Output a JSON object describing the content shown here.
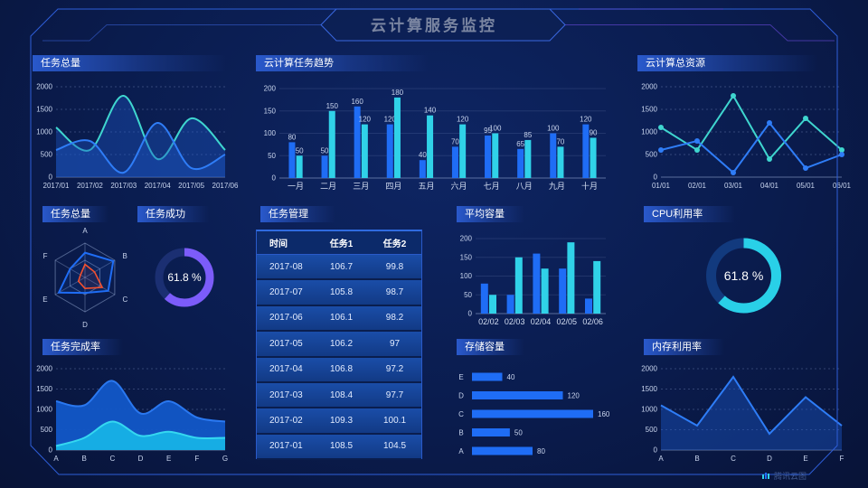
{
  "header": {
    "title": "云计算服务监控"
  },
  "watermark": {
    "label": "腾讯云图"
  },
  "colors": {
    "background": "#0a1c4e",
    "frame": "#2e5ed8",
    "frame_purple": "#6b4be0",
    "blue": "#1f6df5",
    "cyan": "#30d2e8",
    "teal": "#3fd6cf",
    "purple": "#7c5cfa",
    "red": "#f4502e"
  },
  "chart_data": [
    {
      "id": "task-total-area",
      "type": "area",
      "title": "任务总量",
      "smooth": true,
      "x": [
        "2017/01",
        "2017/02",
        "2017/03",
        "2017/04",
        "2017/05",
        "2017/06"
      ],
      "yticks": [
        0,
        500,
        1000,
        1500,
        2000
      ],
      "ylim": [
        0,
        2000
      ],
      "grid": "dashed",
      "series": [
        {
          "name": "series-teal",
          "color": "#3fd6cf",
          "fill": "rgba(27,84,196,0.40)",
          "values": [
            1100,
            600,
            1800,
            400,
            1300,
            600
          ]
        },
        {
          "name": "series-blue",
          "color": "#2f7df7",
          "fill": "rgba(27,84,196,0.40)",
          "values": [
            600,
            800,
            100,
            1200,
            200,
            500
          ]
        }
      ]
    },
    {
      "id": "cloud-task-trend",
      "type": "bar",
      "title": "云计算任务趋势",
      "labels": true,
      "categories": [
        "一月",
        "二月",
        "三月",
        "四月",
        "五月",
        "六月",
        "七月",
        "八月",
        "九月",
        "十月"
      ],
      "yticks": [
        0,
        50,
        100,
        150,
        200
      ],
      "ylim": [
        0,
        200
      ],
      "series": [
        {
          "name": "series-blue",
          "color": "#1f6df5",
          "values": [
            80,
            50,
            160,
            120,
            40,
            70,
            95,
            65,
            100,
            120
          ]
        },
        {
          "name": "series-cyan",
          "color": "#30d2e8",
          "values": [
            50,
            150,
            120,
            180,
            140,
            120,
            100,
            85,
            70,
            90
          ]
        }
      ]
    },
    {
      "id": "cloud-total-resources",
      "type": "line",
      "title": "云计算总资源",
      "markers": true,
      "smooth": false,
      "x": [
        "01/01",
        "02/01",
        "03/01",
        "04/01",
        "05/01",
        "06/01"
      ],
      "yticks": [
        0,
        500,
        1000,
        1500,
        2000
      ],
      "ylim": [
        0,
        2000
      ],
      "grid": "dashed",
      "series": [
        {
          "name": "series-teal",
          "color": "#3fd6cf",
          "values": [
            1100,
            600,
            1800,
            400,
            1300,
            600
          ]
        },
        {
          "name": "series-blue",
          "color": "#2f7df7",
          "values": [
            600,
            800,
            100,
            1200,
            200,
            500
          ]
        }
      ]
    },
    {
      "id": "task-total-radar",
      "type": "radar",
      "title": "任务总量",
      "axes": [
        "A",
        "B",
        "C",
        "D",
        "E",
        "F"
      ],
      "series": [
        {
          "name": "radar-blue",
          "color": "#1f6df5",
          "values": [
            0.72,
            0.95,
            0.78,
            0.45,
            0.88,
            0.5
          ]
        },
        {
          "name": "radar-red",
          "color": "#f4502e",
          "values": [
            0.38,
            0.32,
            0.58,
            0.32,
            0.22,
            0.15
          ]
        }
      ]
    },
    {
      "id": "task-success-donut",
      "type": "donut",
      "title": "任务成功",
      "value": 61.8,
      "label": "61.8 %",
      "color": "#7c5cfa",
      "track": "#1b2f72"
    },
    {
      "id": "task-table",
      "type": "table",
      "title": "任务管理",
      "columns": [
        "时间",
        "任务1",
        "任务2"
      ],
      "rows": [
        [
          "2017-08",
          "106.7",
          "99.8"
        ],
        [
          "2017-07",
          "105.8",
          "98.7"
        ],
        [
          "2017-06",
          "106.1",
          "98.2"
        ],
        [
          "2017-05",
          "106.2",
          "97"
        ],
        [
          "2017-04",
          "106.8",
          "97.2"
        ],
        [
          "2017-03",
          "108.4",
          "97.7"
        ],
        [
          "2017-02",
          "109.3",
          "100.1"
        ],
        [
          "2017-01",
          "108.5",
          "104.5"
        ]
      ]
    },
    {
      "id": "avg-capacity",
      "type": "bar",
      "title": "平均容量",
      "labels": false,
      "categories": [
        "02/02",
        "02/03",
        "02/04",
        "02/05",
        "02/06"
      ],
      "yticks": [
        0,
        50,
        100,
        150,
        200
      ],
      "ylim": [
        0,
        200
      ],
      "series": [
        {
          "name": "series-blue",
          "color": "#1f6df5",
          "values": [
            80,
            50,
            160,
            120,
            40
          ]
        },
        {
          "name": "series-cyan",
          "color": "#30d2e8",
          "values": [
            50,
            150,
            120,
            190,
            140
          ]
        }
      ]
    },
    {
      "id": "storage-capacity",
      "type": "hbar",
      "title": "存储容量",
      "categories": [
        "E",
        "D",
        "C",
        "B",
        "A"
      ],
      "values": [
        40,
        120,
        160,
        50,
        80
      ],
      "xmax": 160,
      "color": "#1f6df5"
    },
    {
      "id": "cpu-usage-donut",
      "type": "donut",
      "title": "CPU利用率",
      "value": 61.8,
      "label": "61.8 %",
      "color": "#29d0e8",
      "track": "#123a7e"
    },
    {
      "id": "memory-usage",
      "type": "area",
      "title": "内存利用率",
      "smooth": false,
      "x": [
        "A",
        "B",
        "C",
        "D",
        "E",
        "F"
      ],
      "yticks": [
        0,
        500,
        1000,
        1500,
        2000
      ],
      "ylim": [
        0,
        2000
      ],
      "grid": "dashed",
      "series": [
        {
          "name": "series-blue",
          "color": "#2e7df7",
          "fill": "rgba(27,84,196,0.45)",
          "values": [
            1100,
            600,
            1800,
            400,
            1300,
            600
          ]
        }
      ]
    },
    {
      "id": "task-completion",
      "type": "area",
      "title": "任务完成率",
      "smooth": true,
      "x": [
        "A",
        "B",
        "C",
        "D",
        "E",
        "F",
        "G"
      ],
      "yticks": [
        0,
        500,
        1000,
        1500,
        2000
      ],
      "ylim": [
        0,
        2000
      ],
      "grid": "dashed",
      "series": [
        {
          "name": "area-blue",
          "color": "#2a78f0",
          "fill": "#1257c8",
          "fillOpacity": 0.95,
          "values": [
            1200,
            1100,
            1700,
            900,
            1200,
            800,
            700
          ]
        },
        {
          "name": "area-cyan",
          "color": "#35d8f0",
          "fill": "#17b2e6",
          "fillOpacity": 0.95,
          "values": [
            100,
            300,
            700,
            350,
            450,
            300,
            300
          ]
        }
      ]
    }
  ]
}
